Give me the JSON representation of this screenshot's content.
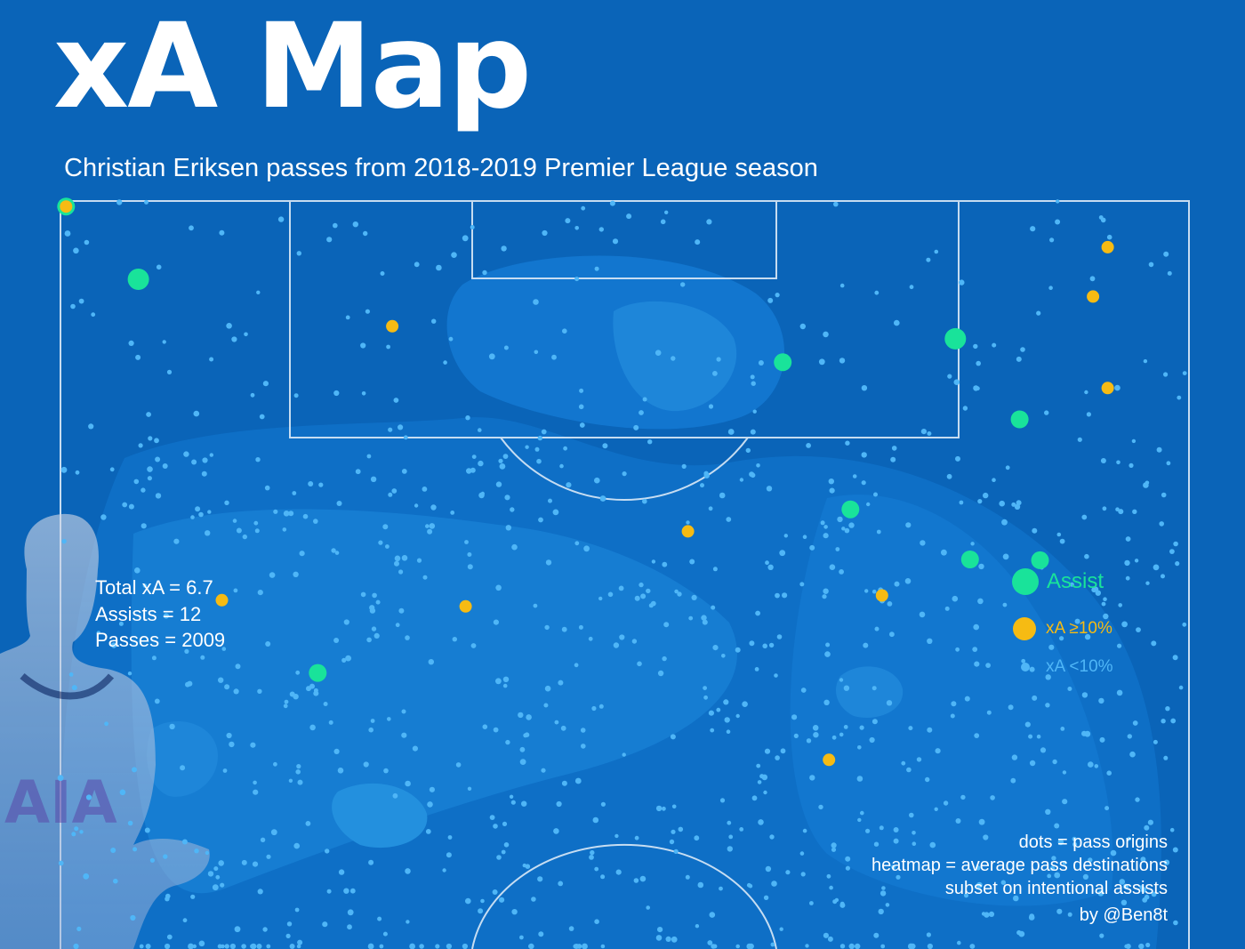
{
  "title": "xA Map",
  "subtitle": "Christian Eriksen passes from 2018-2019 Premier League season",
  "stats": {
    "total_xa": "Total xA = 6.7",
    "assists": "Assists = 12",
    "passes": "Passes = 2009"
  },
  "legend": {
    "assist": "Assist",
    "high": "xA ≥10%",
    "low": "xA <10%"
  },
  "notes": {
    "line1": "dots = pass origins",
    "line2": "heatmap = average pass destinations",
    "line3": "subset on intentional assists",
    "credit": "by @Ben8t"
  },
  "colors": {
    "background": "#0a64b8",
    "assist": "#19e39a",
    "high_xa": "#f6bb13",
    "low_xa": "#4fb6f7",
    "pitch_lines": "#ffffff"
  },
  "chart_data": {
    "type": "scatter",
    "title": "xA Map",
    "subtitle": "Christian Eriksen passes from 2018-2019 Premier League season",
    "pitch_view": "attacking half, goal at top",
    "x_range": [
      0,
      100
    ],
    "y_range": [
      0,
      100
    ],
    "background": "heatmap of average pass destinations",
    "legend_position": "right",
    "series": [
      {
        "name": "Assist",
        "color": "#19e39a",
        "points": [
          [
            0.5,
            0.7
          ],
          [
            6.9,
            10.0
          ],
          [
            64.0,
            20.6
          ],
          [
            79.3,
            17.6
          ],
          [
            85.0,
            27.9
          ],
          [
            70.0,
            39.4
          ],
          [
            80.6,
            45.8
          ],
          [
            86.8,
            45.9
          ],
          [
            22.8,
            60.3
          ]
        ]
      },
      {
        "name": "xA ≥10%",
        "color": "#f6bb13",
        "points": [
          [
            29.4,
            16.0
          ],
          [
            92.8,
            5.9
          ],
          [
            91.5,
            12.2
          ],
          [
            92.8,
            23.9
          ],
          [
            55.6,
            42.2
          ],
          [
            72.8,
            50.4
          ],
          [
            14.3,
            51.0
          ],
          [
            35.9,
            51.8
          ],
          [
            68.1,
            71.4
          ],
          [
            0.5,
            0.7
          ]
        ]
      },
      {
        "name": "xA <10%",
        "color": "#4fb6f7",
        "count_shown": 2009,
        "note": "pass origins (individual small dots)"
      }
    ]
  }
}
